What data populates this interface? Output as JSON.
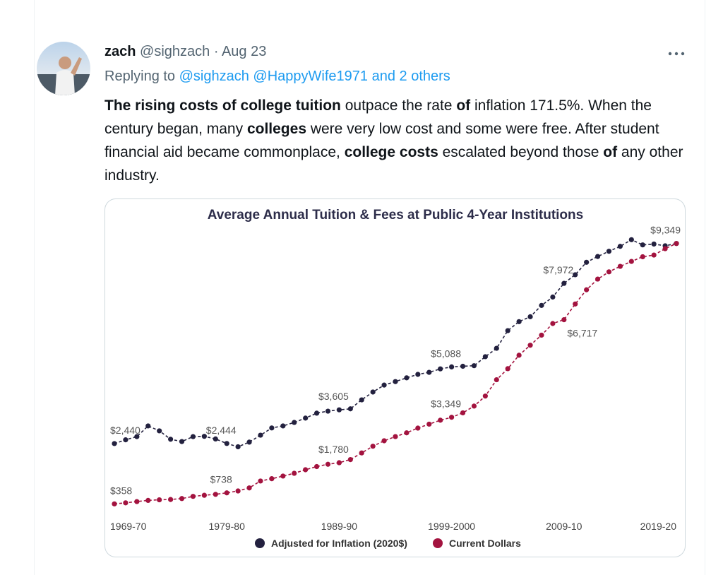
{
  "tweet": {
    "author": {
      "name": "zach",
      "handle": "@sighzach",
      "separator": "·",
      "date": "Aug 23"
    },
    "reply": {
      "prefix": "Replying to",
      "mentions": "@sighzach @HappyWife1971 and 2 others"
    },
    "body": [
      {
        "text": "The rising costs of college tuition",
        "bold": true
      },
      {
        "text": " outpace the rate ",
        "bold": false
      },
      {
        "text": "of",
        "bold": true
      },
      {
        "text": " inflation 171.5%. When the century began, many ",
        "bold": false
      },
      {
        "text": "colleges",
        "bold": true
      },
      {
        "text": " were very low cost and some were free. After student financial aid became commonplace, ",
        "bold": false
      },
      {
        "text": "college costs",
        "bold": true
      },
      {
        "text": " escalated beyond those ",
        "bold": false
      },
      {
        "text": "of",
        "bold": true
      },
      {
        "text": " any other industry.",
        "bold": false
      }
    ]
  },
  "chart_data": {
    "type": "line",
    "title": "Average Annual Tuition & Fees at Public 4-Year Institutions",
    "categories": [
      "1969-70",
      null,
      null,
      null,
      null,
      null,
      null,
      null,
      null,
      null,
      "1979-80",
      null,
      null,
      null,
      null,
      null,
      null,
      null,
      null,
      null,
      "1989-90",
      null,
      null,
      null,
      null,
      null,
      null,
      null,
      null,
      null,
      "1999-2000",
      null,
      null,
      null,
      null,
      null,
      null,
      null,
      null,
      null,
      "2009-10",
      null,
      null,
      null,
      null,
      null,
      null,
      null,
      null,
      null,
      "2019-20"
    ],
    "ylim": [
      0,
      10000
    ],
    "series": [
      {
        "name": "Adjusted for Inflation (2020$)",
        "color": "#23213f",
        "values": [
          2440,
          2570,
          2680,
          3050,
          2880,
          2590,
          2510,
          2680,
          2690,
          2600,
          2444,
          2330,
          2490,
          2730,
          2980,
          3050,
          3170,
          3320,
          3490,
          3560,
          3605,
          3640,
          3950,
          4220,
          4460,
          4580,
          4710,
          4830,
          4900,
          5020,
          5088,
          5110,
          5130,
          5440,
          5730,
          6340,
          6650,
          6820,
          7210,
          7500,
          7972,
          8270,
          8700,
          8900,
          9080,
          9250,
          9480,
          9300,
          9330,
          9270,
          9349
        ],
        "value_labels": [
          "$2,440",
          null,
          null,
          null,
          null,
          null,
          null,
          null,
          null,
          null,
          "$2,444",
          null,
          null,
          null,
          null,
          null,
          null,
          null,
          null,
          null,
          "$3,605",
          null,
          null,
          null,
          null,
          null,
          null,
          null,
          null,
          null,
          "$5,088",
          null,
          null,
          null,
          null,
          null,
          null,
          null,
          null,
          null,
          "$7,972",
          null,
          null,
          null,
          null,
          null,
          null,
          null,
          null,
          null,
          "$9,349"
        ]
      },
      {
        "name": "Current Dollars",
        "color": "#a3133f",
        "values": [
          358,
          394,
          438,
          478,
          499,
          510,
          542,
          617,
          655,
          688,
          738,
          804,
          909,
          1148,
          1228,
          1318,
          1414,
          1537,
          1646,
          1726,
          1780,
          1888,
          2117,
          2349,
          2537,
          2681,
          2811,
          2975,
          3111,
          3247,
          3349,
          3501,
          3735,
          4081,
          4645,
          5027,
          5491,
          5836,
          6185,
          6585,
          6717,
          7260,
          7750,
          8120,
          8370,
          8560,
          8730,
          8890,
          8950,
          9170,
          9349
        ],
        "value_labels": [
          "$358",
          null,
          null,
          null,
          null,
          null,
          null,
          null,
          null,
          null,
          "$738",
          null,
          null,
          null,
          null,
          null,
          null,
          null,
          null,
          null,
          "$1,780",
          null,
          null,
          null,
          null,
          null,
          null,
          null,
          null,
          null,
          "$3,349",
          null,
          null,
          null,
          null,
          null,
          null,
          null,
          null,
          null,
          "$6,717",
          null,
          null,
          null,
          null,
          null,
          null,
          null,
          null,
          null,
          null
        ]
      }
    ]
  }
}
